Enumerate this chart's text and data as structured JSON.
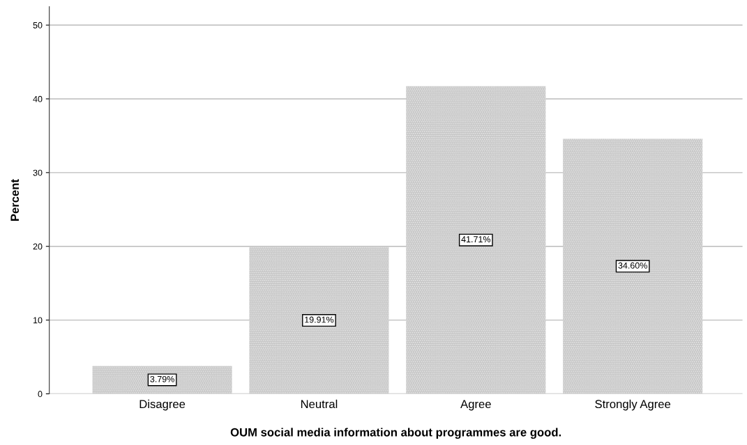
{
  "chart_data": {
    "type": "bar",
    "xlabel": "OUM social media information about programmes are good.",
    "ylabel": "Percent",
    "categories": [
      "Disagree",
      "Neutral",
      "Agree",
      "Strongly Agree"
    ],
    "values": [
      3.79,
      19.91,
      41.71,
      34.6
    ],
    "value_labels": [
      "3.79%",
      "19.91%",
      "41.71%",
      "34.60%"
    ],
    "color": "#c8c8c8",
    "ylim": [
      0,
      52.5
    ],
    "yticks": [
      0,
      10,
      20,
      30,
      40,
      50
    ],
    "grid": "y"
  }
}
